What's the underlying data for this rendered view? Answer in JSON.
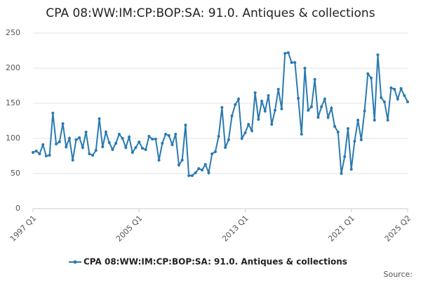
{
  "chart_data": {
    "type": "line",
    "title": "CPA 08:WW:IM:CP:BOP:SA: 91.0. Antiques & collections",
    "categories": [
      "1997 Q1",
      null,
      null,
      null,
      null,
      null,
      null,
      null,
      null,
      null,
      null,
      null,
      null,
      null,
      null,
      null,
      null,
      null,
      null,
      null,
      null,
      null,
      null,
      null,
      null,
      null,
      null,
      null,
      null,
      null,
      null,
      null,
      "2005 Q1",
      null,
      null,
      null,
      null,
      null,
      null,
      null,
      null,
      null,
      null,
      null,
      null,
      null,
      null,
      null,
      null,
      null,
      null,
      null,
      null,
      null,
      null,
      null,
      null,
      null,
      null,
      null,
      null,
      null,
      null,
      null,
      "2013 Q1",
      null,
      null,
      null,
      null,
      null,
      null,
      null,
      null,
      null,
      null,
      null,
      null,
      null,
      null,
      null,
      null,
      null,
      null,
      null,
      null,
      null,
      null,
      null,
      null,
      null,
      null,
      null,
      null,
      null,
      null,
      null,
      "2021 Q1",
      null,
      null,
      null,
      null,
      null,
      null,
      null,
      null,
      null,
      null,
      null,
      null,
      null,
      null,
      null,
      null,
      "2025 Q2"
    ],
    "series": [
      {
        "name": "CPA 08:WW:IM:CP:BOP:SA: 91.0. Antiques & collections",
        "color": "#2a7ab0",
        "values": [
          80,
          82,
          78,
          91,
          75,
          76,
          136,
          92,
          95,
          121,
          88,
          100,
          69,
          98,
          101,
          87,
          109,
          78,
          76,
          83,
          128,
          88,
          109,
          94,
          84,
          93,
          106,
          100,
          87,
          102,
          80,
          87,
          95,
          86,
          84,
          103,
          99,
          99,
          69,
          93,
          106,
          104,
          91,
          106,
          62,
          69,
          119,
          47,
          47,
          51,
          57,
          55,
          63,
          51,
          78,
          81,
          103,
          144,
          87,
          98,
          132,
          148,
          156,
          100,
          108,
          120,
          111,
          165,
          127,
          153,
          139,
          161,
          120,
          140,
          170,
          142,
          221,
          222,
          208,
          208,
          157,
          106,
          200,
          140,
          145,
          184,
          130,
          145,
          156,
          130,
          143,
          117,
          109,
          50,
          74,
          114,
          56,
          96,
          126,
          98,
          139,
          192,
          186,
          126,
          219,
          158,
          152,
          126,
          172,
          170,
          156,
          171,
          161,
          152
        ]
      }
    ],
    "ylim": [
      0,
      250
    ],
    "yticks": [
      0,
      50,
      100,
      150,
      200,
      250
    ],
    "grid": true,
    "legend": "bottom",
    "source": "Source:"
  }
}
